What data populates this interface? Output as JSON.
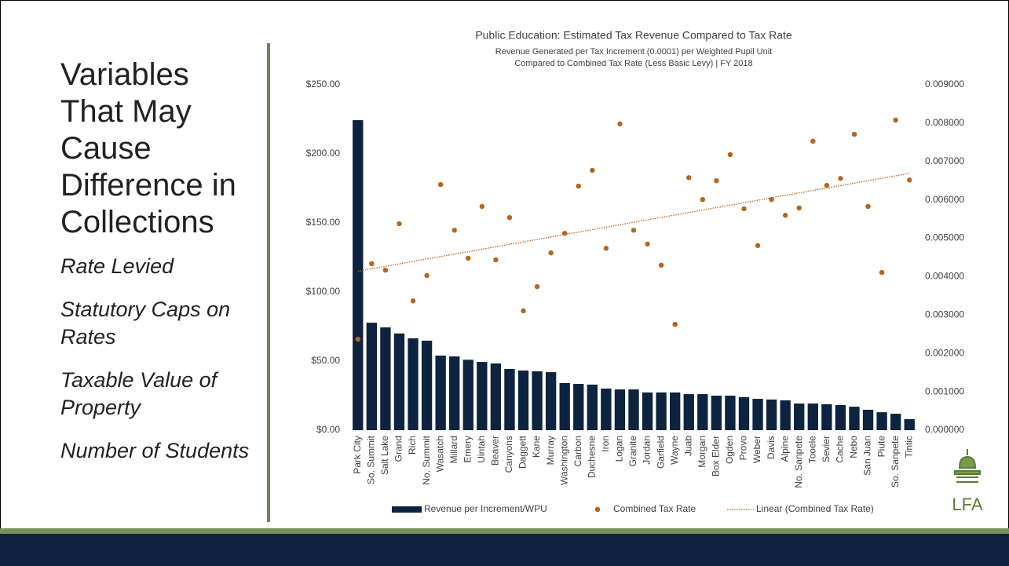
{
  "slide": {
    "title_lines": [
      "Variables",
      "That May",
      "Cause",
      "Difference in",
      "Collections"
    ],
    "items": [
      "Rate Levied",
      "Statutory Caps on Rates",
      "Taxable Value of Property",
      "Number of Students"
    ],
    "logo": "LFA"
  },
  "chart_data": {
    "type": "combo",
    "title": "Public Education: Estimated Tax Revenue Compared to Tax Rate",
    "subtitle": [
      "Revenue Generated per Tax Increment (0.0001) per Weighted Pupil Unit",
      "Compared to Combined Tax Rate (Less Basic Levy) | FY 2018"
    ],
    "categories": [
      "Park City",
      "So. Summit",
      "Salt Lake",
      "Grand",
      "Rich",
      "No. Summit",
      "Wasatch",
      "Millard",
      "Emery",
      "Uintah",
      "Beaver",
      "Canyons",
      "Daggett",
      "Kane",
      "Murray",
      "Washington",
      "Carbon",
      "Duchesne",
      "Iron",
      "Logan",
      "Granite",
      "Jordan",
      "Garfield",
      "Wayne",
      "Juab",
      "Morgan",
      "Box Elder",
      "Ogden",
      "Provo",
      "Weber",
      "Davis",
      "Alpine",
      "No. Sanpete",
      "Tooele",
      "Sevier",
      "Cache",
      "Nebo",
      "San Juan",
      "Piute",
      "So. Sanpete",
      "Tintic"
    ],
    "series": [
      {
        "name": "Revenue per Increment/WPU",
        "type": "bar",
        "color": "#0d2340",
        "values": [
          224.4,
          77.8,
          74.4,
          70,
          66.5,
          64.8,
          54,
          53.4,
          51,
          49.4,
          48.3,
          44.3,
          43.2,
          42.6,
          42,
          34.1,
          33.5,
          33,
          30.1,
          29.5,
          29.5,
          27.3,
          27.3,
          27.3,
          26.1,
          26.1,
          25,
          25,
          23.9,
          22.7,
          22.2,
          21.6,
          19.3,
          19.3,
          18.8,
          18.2,
          17,
          14.8,
          13,
          11.9,
          8
        ]
      },
      {
        "name": "Combined Tax Rate",
        "type": "scatter",
        "axis": "y2",
        "color": "#b5651d",
        "values": [
          0.00237,
          0.00434,
          0.00417,
          0.00538,
          0.00337,
          0.00403,
          0.0064,
          0.00521,
          0.00448,
          0.00583,
          0.00444,
          0.00554,
          0.00311,
          0.00374,
          0.00462,
          0.00513,
          0.00636,
          0.00677,
          0.00474,
          0.00798,
          0.00521,
          0.00485,
          0.0043,
          0.00276,
          0.00658,
          0.00601,
          0.0065,
          0.00718,
          0.00577,
          0.00481,
          0.00601,
          0.0056,
          0.00579,
          0.00753,
          0.00638,
          0.00656,
          0.00771,
          0.00583,
          0.00411,
          0.00808,
          0.00652
        ]
      }
    ],
    "trendline": {
      "name": "Linear (Combined Tax Rate)",
      "color": "#b5651d"
    },
    "ylim": [
      0,
      250
    ],
    "yticks": [
      {
        "value": 0,
        "label": "$0.00"
      },
      {
        "value": 50,
        "label": "$50.00"
      },
      {
        "value": 100,
        "label": "$100.00"
      },
      {
        "value": 150,
        "label": "$150.00"
      },
      {
        "value": 200,
        "label": "$200.00"
      },
      {
        "value": 250,
        "label": "$250.00"
      }
    ],
    "y2lim": [
      0,
      0.009
    ],
    "y2ticks": [
      {
        "value": 0,
        "label": "0.000000"
      },
      {
        "value": 0.001,
        "label": "0.001000"
      },
      {
        "value": 0.002,
        "label": "0.002000"
      },
      {
        "value": 0.003,
        "label": "0.003000"
      },
      {
        "value": 0.004,
        "label": "0.004000"
      },
      {
        "value": 0.005,
        "label": "0.005000"
      },
      {
        "value": 0.006,
        "label": "0.006000"
      },
      {
        "value": 0.007,
        "label": "0.007000"
      },
      {
        "value": 0.008,
        "label": "0.008000"
      },
      {
        "value": 0.009,
        "label": "0.009000"
      }
    ],
    "grid": false
  }
}
